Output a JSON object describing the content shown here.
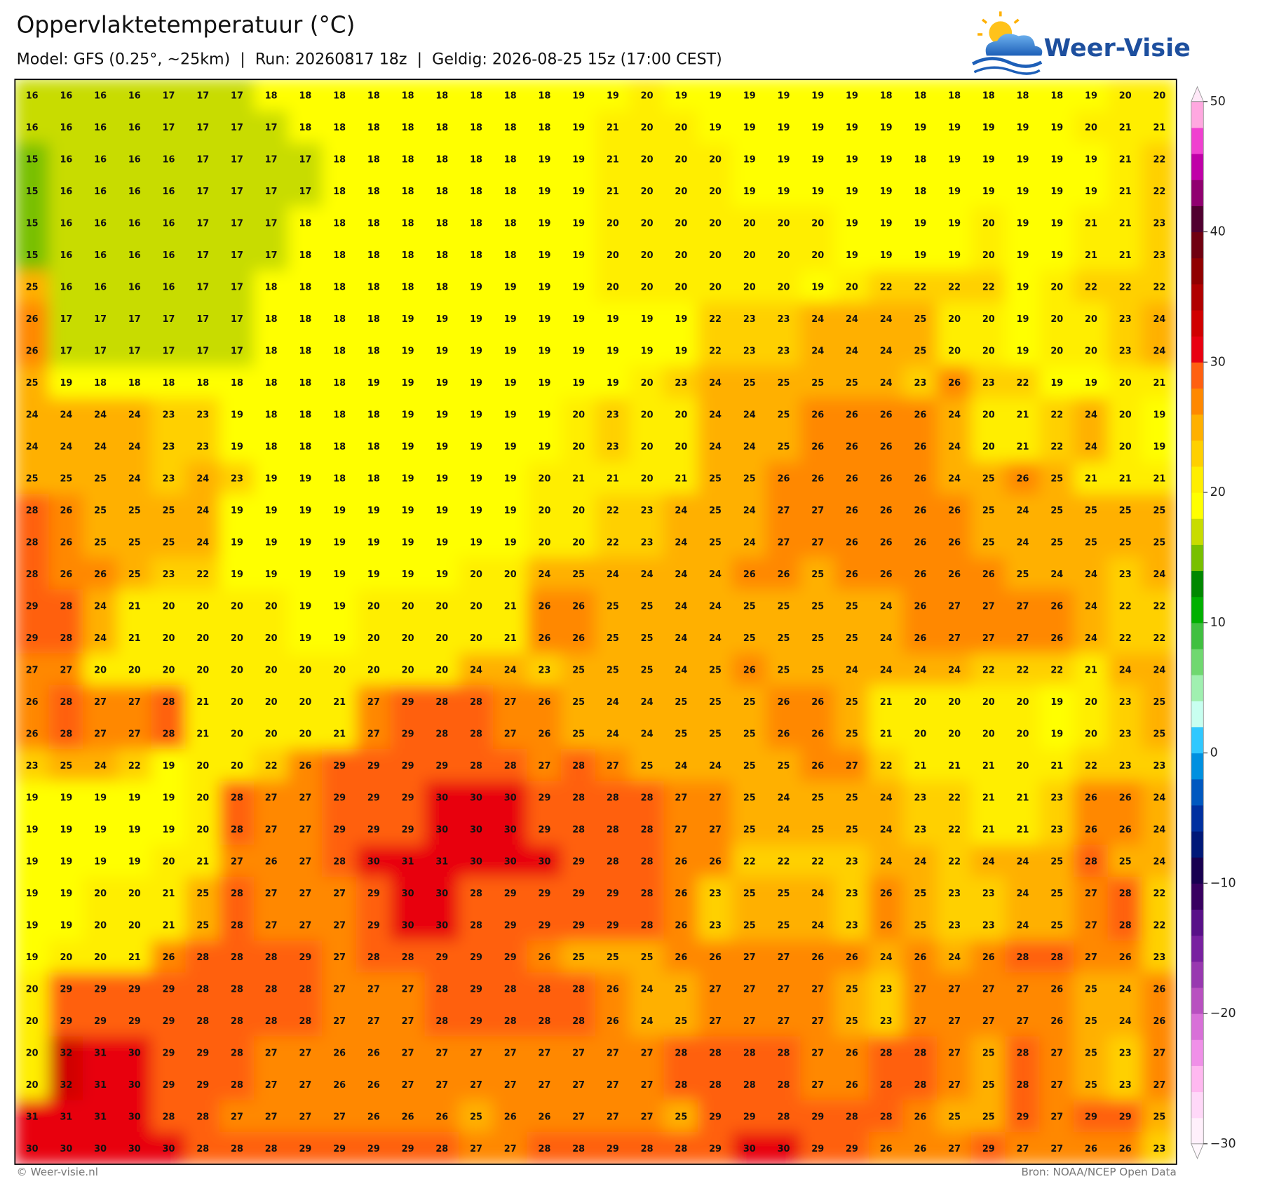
{
  "header": {
    "title": "Oppervlaktetemperatuur (°C)",
    "subtitle": "Model: GFS (0.25°, ~25km)  |  Run: 20260817 18z  |  Geldig: 2026-08-25 15z (17:00 CEST)",
    "logo": "Weer-Visie"
  },
  "map": {
    "values": [
      [
        16,
        16,
        16,
        16,
        17,
        17,
        17,
        18,
        18,
        18,
        18,
        18,
        18,
        18,
        18,
        18,
        19,
        19,
        20,
        19,
        19,
        19,
        19,
        19,
        19,
        18,
        18,
        18,
        18,
        18,
        18,
        19,
        20,
        20
      ],
      [
        16,
        16,
        16,
        16,
        17,
        17,
        17,
        17,
        18,
        18,
        18,
        18,
        18,
        18,
        18,
        18,
        19,
        21,
        20,
        20,
        19,
        19,
        19,
        19,
        19,
        19,
        19,
        19,
        19,
        19,
        19,
        20,
        21,
        21
      ],
      [
        15,
        16,
        16,
        16,
        16,
        17,
        17,
        17,
        17,
        18,
        18,
        18,
        18,
        18,
        18,
        19,
        19,
        21,
        20,
        20,
        20,
        19,
        19,
        19,
        19,
        19,
        18,
        19,
        19,
        19,
        19,
        19,
        21,
        22
      ],
      [
        15,
        16,
        16,
        16,
        16,
        17,
        17,
        17,
        17,
        18,
        18,
        18,
        18,
        18,
        18,
        19,
        19,
        21,
        20,
        20,
        20,
        19,
        19,
        19,
        19,
        19,
        18,
        19,
        19,
        19,
        19,
        19,
        21,
        22
      ],
      [
        15,
        16,
        16,
        16,
        16,
        17,
        17,
        17,
        18,
        18,
        18,
        18,
        18,
        18,
        18,
        19,
        19,
        20,
        20,
        20,
        20,
        20,
        20,
        20,
        19,
        19,
        19,
        19,
        20,
        19,
        19,
        21,
        21,
        23
      ],
      [
        15,
        16,
        16,
        16,
        16,
        17,
        17,
        17,
        18,
        18,
        18,
        18,
        18,
        18,
        18,
        19,
        19,
        20,
        20,
        20,
        20,
        20,
        20,
        20,
        19,
        19,
        19,
        19,
        20,
        19,
        19,
        21,
        21,
        23
      ],
      [
        25,
        16,
        16,
        16,
        16,
        17,
        17,
        18,
        18,
        18,
        18,
        18,
        18,
        19,
        19,
        19,
        19,
        20,
        20,
        20,
        20,
        20,
        20,
        19,
        20,
        22,
        22,
        22,
        22,
        19,
        20,
        22,
        22,
        22
      ],
      [
        26,
        17,
        17,
        17,
        17,
        17,
        17,
        18,
        18,
        18,
        18,
        19,
        19,
        19,
        19,
        19,
        19,
        19,
        19,
        19,
        22,
        23,
        23,
        24,
        24,
        24,
        25,
        20,
        20,
        19,
        20,
        20,
        23,
        24
      ],
      [
        26,
        17,
        17,
        17,
        17,
        17,
        17,
        18,
        18,
        18,
        18,
        19,
        19,
        19,
        19,
        19,
        19,
        19,
        19,
        19,
        22,
        23,
        23,
        24,
        24,
        24,
        25,
        20,
        20,
        19,
        20,
        20,
        23,
        24
      ],
      [
        25,
        19,
        18,
        18,
        18,
        18,
        18,
        18,
        18,
        18,
        19,
        19,
        19,
        19,
        19,
        19,
        19,
        19,
        20,
        23,
        24,
        25,
        25,
        25,
        25,
        24,
        23,
        26,
        23,
        22,
        19,
        19,
        20,
        21
      ],
      [
        24,
        24,
        24,
        24,
        23,
        23,
        19,
        18,
        18,
        18,
        18,
        19,
        19,
        19,
        19,
        19,
        20,
        23,
        20,
        20,
        24,
        24,
        25,
        26,
        26,
        26,
        26,
        24,
        20,
        21,
        22,
        24,
        20,
        19
      ],
      [
        24,
        24,
        24,
        24,
        23,
        23,
        19,
        18,
        18,
        18,
        18,
        19,
        19,
        19,
        19,
        19,
        20,
        23,
        20,
        20,
        24,
        24,
        25,
        26,
        26,
        26,
        26,
        24,
        20,
        21,
        22,
        24,
        20,
        19
      ],
      [
        25,
        25,
        25,
        24,
        23,
        24,
        23,
        19,
        19,
        18,
        18,
        19,
        19,
        19,
        19,
        20,
        21,
        21,
        20,
        21,
        25,
        25,
        26,
        26,
        26,
        26,
        26,
        24,
        25,
        26,
        25,
        21,
        21,
        21
      ],
      [
        28,
        26,
        25,
        25,
        25,
        24,
        19,
        19,
        19,
        19,
        19,
        19,
        19,
        19,
        19,
        20,
        20,
        22,
        23,
        24,
        25,
        24,
        27,
        27,
        26,
        26,
        26,
        26,
        25,
        24,
        25,
        25,
        25,
        25
      ],
      [
        28,
        26,
        25,
        25,
        25,
        24,
        19,
        19,
        19,
        19,
        19,
        19,
        19,
        19,
        19,
        20,
        20,
        22,
        23,
        24,
        25,
        24,
        27,
        27,
        26,
        26,
        26,
        26,
        25,
        24,
        25,
        25,
        25,
        25
      ],
      [
        28,
        26,
        26,
        25,
        23,
        22,
        19,
        19,
        19,
        19,
        19,
        19,
        19,
        20,
        20,
        24,
        25,
        24,
        24,
        24,
        24,
        26,
        26,
        25,
        26,
        26,
        26,
        26,
        26,
        25,
        24,
        24,
        23,
        24
      ],
      [
        29,
        28,
        24,
        21,
        20,
        20,
        20,
        20,
        19,
        19,
        20,
        20,
        20,
        20,
        21,
        26,
        26,
        25,
        25,
        24,
        24,
        25,
        25,
        25,
        25,
        24,
        26,
        27,
        27,
        27,
        26,
        24,
        22,
        22
      ],
      [
        29,
        28,
        24,
        21,
        20,
        20,
        20,
        20,
        19,
        19,
        20,
        20,
        20,
        20,
        21,
        26,
        26,
        25,
        25,
        24,
        24,
        25,
        25,
        25,
        25,
        24,
        26,
        27,
        27,
        27,
        26,
        24,
        22,
        22
      ],
      [
        27,
        27,
        20,
        20,
        20,
        20,
        20,
        20,
        20,
        20,
        20,
        20,
        20,
        24,
        24,
        23,
        25,
        25,
        25,
        24,
        25,
        26,
        25,
        25,
        24,
        24,
        24,
        24,
        22,
        22,
        22,
        21,
        24,
        24
      ],
      [
        26,
        28,
        27,
        27,
        28,
        21,
        20,
        20,
        20,
        21,
        27,
        29,
        28,
        28,
        27,
        26,
        25,
        24,
        24,
        25,
        25,
        25,
        26,
        26,
        25,
        21,
        20,
        20,
        20,
        20,
        19,
        20,
        23,
        25
      ],
      [
        26,
        28,
        27,
        27,
        28,
        21,
        20,
        20,
        20,
        21,
        27,
        29,
        28,
        28,
        27,
        26,
        25,
        24,
        24,
        25,
        25,
        25,
        26,
        26,
        25,
        21,
        20,
        20,
        20,
        20,
        19,
        20,
        23,
        25
      ],
      [
        23,
        25,
        24,
        22,
        19,
        20,
        20,
        22,
        26,
        29,
        29,
        29,
        29,
        28,
        28,
        27,
        28,
        27,
        25,
        24,
        24,
        25,
        25,
        26,
        27,
        22,
        21,
        21,
        21,
        20,
        21,
        22,
        23,
        23
      ],
      [
        19,
        19,
        19,
        19,
        19,
        20,
        28,
        27,
        27,
        29,
        29,
        29,
        30,
        30,
        30,
        29,
        28,
        28,
        28,
        27,
        27,
        25,
        24,
        25,
        25,
        24,
        23,
        22,
        21,
        21,
        23,
        26,
        26,
        24
      ],
      [
        19,
        19,
        19,
        19,
        19,
        20,
        28,
        27,
        27,
        29,
        29,
        29,
        30,
        30,
        30,
        29,
        28,
        28,
        28,
        27,
        27,
        25,
        24,
        25,
        25,
        24,
        23,
        22,
        21,
        21,
        23,
        26,
        26,
        24
      ],
      [
        19,
        19,
        19,
        19,
        20,
        21,
        27,
        26,
        27,
        28,
        30,
        31,
        31,
        30,
        30,
        30,
        29,
        28,
        28,
        26,
        26,
        22,
        22,
        22,
        23,
        24,
        24,
        22,
        24,
        24,
        25,
        28,
        25,
        24
      ],
      [
        19,
        19,
        20,
        20,
        21,
        25,
        28,
        27,
        27,
        27,
        29,
        30,
        30,
        28,
        29,
        29,
        29,
        29,
        28,
        26,
        23,
        25,
        25,
        24,
        23,
        26,
        25,
        23,
        23,
        24,
        25,
        27,
        28,
        22
      ],
      [
        19,
        19,
        20,
        20,
        21,
        25,
        28,
        27,
        27,
        27,
        29,
        30,
        30,
        28,
        29,
        29,
        29,
        29,
        28,
        26,
        23,
        25,
        25,
        24,
        23,
        26,
        25,
        23,
        23,
        24,
        25,
        27,
        28,
        22
      ],
      [
        19,
        20,
        20,
        21,
        26,
        28,
        28,
        28,
        29,
        27,
        28,
        28,
        29,
        29,
        29,
        26,
        25,
        25,
        25,
        26,
        26,
        27,
        27,
        26,
        26,
        24,
        26,
        24,
        26,
        28,
        28,
        27,
        26,
        23
      ],
      [
        20,
        29,
        29,
        29,
        29,
        28,
        28,
        28,
        28,
        27,
        27,
        27,
        28,
        29,
        28,
        28,
        28,
        26,
        24,
        25,
        27,
        27,
        27,
        27,
        25,
        23,
        27,
        27,
        27,
        27,
        26,
        25,
        24,
        26
      ],
      [
        20,
        29,
        29,
        29,
        29,
        28,
        28,
        28,
        28,
        27,
        27,
        27,
        28,
        29,
        28,
        28,
        28,
        26,
        24,
        25,
        27,
        27,
        27,
        27,
        25,
        23,
        27,
        27,
        27,
        27,
        26,
        25,
        24,
        26
      ],
      [
        20,
        32,
        31,
        30,
        29,
        29,
        28,
        27,
        27,
        26,
        26,
        27,
        27,
        27,
        27,
        27,
        27,
        27,
        27,
        28,
        28,
        28,
        28,
        27,
        26,
        28,
        28,
        27,
        25,
        28,
        27,
        25,
        23,
        27
      ],
      [
        20,
        32,
        31,
        30,
        29,
        29,
        28,
        27,
        27,
        26,
        26,
        27,
        27,
        27,
        27,
        27,
        27,
        27,
        27,
        28,
        28,
        28,
        28,
        27,
        26,
        28,
        28,
        27,
        25,
        28,
        27,
        25,
        23,
        27
      ],
      [
        31,
        31,
        31,
        30,
        28,
        28,
        27,
        27,
        27,
        27,
        26,
        26,
        26,
        25,
        26,
        26,
        27,
        27,
        27,
        25,
        29,
        29,
        28,
        29,
        28,
        28,
        26,
        25,
        25,
        29,
        27,
        29,
        29,
        25
      ],
      [
        30,
        30,
        30,
        30,
        30,
        28,
        28,
        28,
        29,
        29,
        29,
        29,
        28,
        27,
        27,
        28,
        28,
        29,
        28,
        28,
        29,
        30,
        30,
        29,
        29,
        26,
        26,
        27,
        29,
        27,
        27,
        26,
        26,
        23
      ]
    ]
  },
  "colorbar": {
    "colors": [
      "#fff0fb",
      "#ffd8f8",
      "#ffb8f0",
      "#f090e8",
      "#d870d8",
      "#b850c0",
      "#9838b0",
      "#7820a0",
      "#581088",
      "#380060",
      "#180050",
      "#001878",
      "#0030a0",
      "#0058c0",
      "#0090e0",
      "#30c8ff",
      "#c8fff0",
      "#a0f0b0",
      "#70d870",
      "#40c040",
      "#00b000",
      "#008800",
      "#78c000",
      "#c8dc00",
      "#ffff00",
      "#ffee00",
      "#ffd000",
      "#ffb000",
      "#ff8800",
      "#ff6010",
      "#e80010",
      "#d00000",
      "#b00000",
      "#900000",
      "#700010",
      "#500030",
      "#900070",
      "#c000a8",
      "#f040d0",
      "#ffa8e0"
    ],
    "ticks": [
      {
        "value": -30,
        "label": "−30"
      },
      {
        "value": -20,
        "label": "−20"
      },
      {
        "value": -10,
        "label": "−10"
      },
      0,
      10,
      20,
      30,
      40,
      50
    ]
  },
  "footer": {
    "credit": "© Weer-visie.nl",
    "source": "Bron: NOAA/NCEP Open Data"
  }
}
